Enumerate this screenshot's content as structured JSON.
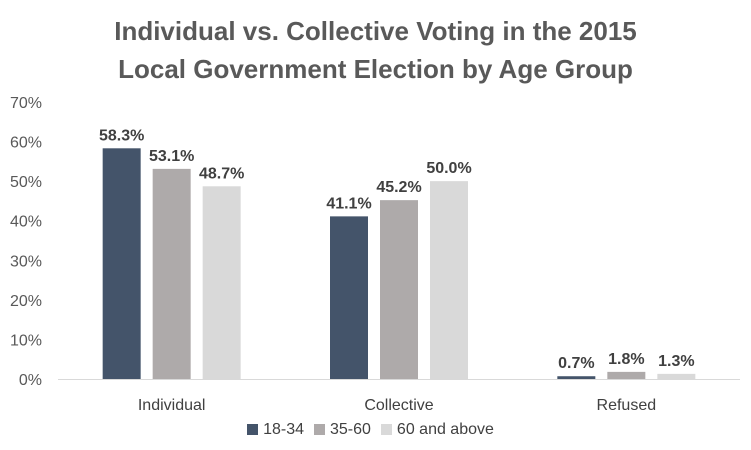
{
  "title_line1": "Individual vs. Collective Voting in the 2015",
  "title_line2": "Local Government Election by Age Group",
  "chart_data": {
    "type": "bar",
    "title": "Individual vs. Collective Voting in the 2015 Local Government Election by Age Group",
    "categories": [
      "Individual",
      "Collective",
      "Refused"
    ],
    "series": [
      {
        "name": "18-34",
        "color": "#44546a",
        "values": [
          58.3,
          41.1,
          0.7
        ],
        "labels": [
          "58.3%",
          "41.1%",
          "0.7%"
        ]
      },
      {
        "name": "35-60",
        "color": "#aeaaaa",
        "values": [
          53.1,
          45.2,
          1.8
        ],
        "labels": [
          "53.1%",
          "45.2%",
          "1.8%"
        ]
      },
      {
        "name": "60 and above",
        "color": "#d9d9d9",
        "values": [
          48.7,
          50.0,
          1.3
        ],
        "labels": [
          "48.7%",
          "50.0%",
          "1.3%"
        ]
      }
    ],
    "ylim": [
      0,
      70
    ],
    "yticks": [
      0,
      10,
      20,
      30,
      40,
      50,
      60,
      70
    ],
    "ytick_labels": [
      "0%",
      "10%",
      "20%",
      "30%",
      "40%",
      "50%",
      "60%",
      "70%"
    ],
    "xlabel": "",
    "ylabel": "",
    "grid": false,
    "legend_position": "bottom"
  }
}
